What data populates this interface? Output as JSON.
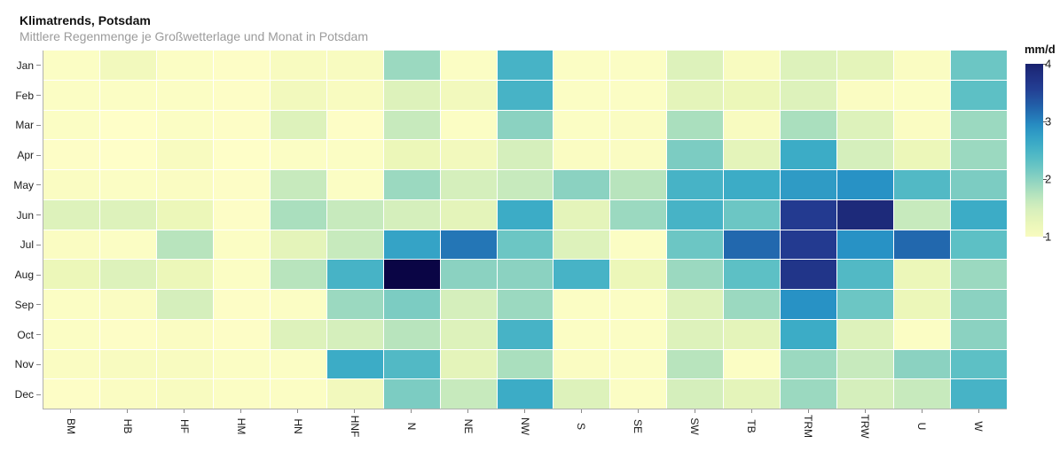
{
  "header": {
    "title": "Klimatrends, Potsdam",
    "subtitle": "Mittlere Regenmenge je Großwetterlage und Monat in Potsdam"
  },
  "legend": {
    "label": "mm/d",
    "ticks": [
      4,
      3,
      2,
      1
    ],
    "min": 1,
    "max": 4
  },
  "chart_data": {
    "type": "heatmap",
    "title": "Klimatrends, Potsdam",
    "subtitle": "Mittlere Regenmenge je Großwetterlage und Monat in Potsdam",
    "value_label": "mm/d",
    "x_categories": [
      "BM",
      "HB",
      "HF",
      "HM",
      "HN",
      "HNF",
      "N",
      "NE",
      "NW",
      "S",
      "SE",
      "SW",
      "TB",
      "TRM",
      "TRW",
      "U",
      "W"
    ],
    "y_categories": [
      "Jan",
      "Feb",
      "Mar",
      "Apr",
      "May",
      "Jun",
      "Jul",
      "Aug",
      "Sep",
      "Oct",
      "Nov",
      "Dec"
    ],
    "values": [
      [
        0.9,
        1.1,
        0.9,
        0.85,
        1.0,
        1.0,
        1.9,
        0.9,
        2.5,
        0.9,
        0.9,
        1.4,
        1.0,
        1.4,
        1.3,
        0.95,
        2.2
      ],
      [
        0.9,
        0.9,
        0.9,
        0.85,
        1.1,
        1.0,
        1.4,
        1.1,
        2.5,
        0.9,
        0.9,
        1.3,
        1.2,
        1.4,
        0.95,
        0.9,
        2.3
      ],
      [
        0.9,
        0.8,
        0.9,
        0.85,
        1.4,
        0.85,
        1.6,
        0.9,
        2.0,
        0.9,
        0.95,
        1.8,
        1.0,
        1.8,
        1.4,
        0.95,
        1.9
      ],
      [
        0.85,
        0.8,
        1.0,
        0.8,
        0.9,
        0.9,
        1.2,
        1.1,
        1.5,
        0.95,
        0.95,
        2.1,
        1.3,
        2.6,
        1.5,
        1.2,
        1.9
      ],
      [
        0.95,
        0.9,
        0.95,
        0.85,
        1.6,
        0.9,
        1.9,
        1.5,
        1.6,
        2.0,
        1.7,
        2.5,
        2.6,
        2.8,
        2.9,
        2.4,
        2.1
      ],
      [
        1.4,
        1.4,
        1.2,
        0.85,
        1.8,
        1.6,
        1.5,
        1.3,
        2.6,
        1.3,
        1.9,
        2.5,
        2.2,
        3.6,
        3.9,
        1.6,
        2.6
      ],
      [
        0.95,
        0.9,
        1.7,
        0.9,
        1.3,
        1.6,
        2.7,
        3.1,
        2.2,
        1.4,
        0.9,
        2.2,
        3.2,
        3.6,
        2.9,
        3.2,
        2.3
      ],
      [
        1.2,
        1.4,
        1.2,
        0.9,
        1.7,
        2.5,
        4.3,
        2.0,
        2.0,
        2.5,
        1.2,
        1.9,
        2.3,
        3.7,
        2.4,
        1.2,
        1.9
      ],
      [
        0.9,
        0.95,
        1.5,
        0.85,
        0.9,
        1.9,
        2.1,
        1.5,
        1.9,
        0.9,
        0.9,
        1.4,
        1.9,
        2.9,
        2.2,
        1.2,
        2.0
      ],
      [
        0.9,
        0.85,
        0.95,
        0.85,
        1.4,
        1.5,
        1.7,
        1.4,
        2.5,
        0.9,
        0.9,
        1.4,
        1.3,
        2.6,
        1.4,
        0.9,
        2.0
      ],
      [
        0.95,
        1.0,
        1.0,
        0.9,
        0.9,
        2.6,
        2.4,
        1.3,
        1.8,
        0.95,
        0.9,
        1.7,
        0.9,
        1.9,
        1.6,
        2.0,
        2.3
      ],
      [
        0.85,
        0.95,
        1.0,
        0.9,
        0.9,
        1.1,
        2.1,
        1.6,
        2.6,
        1.4,
        0.9,
        1.5,
        1.3,
        1.9,
        1.5,
        1.6,
        2.5
      ]
    ],
    "color_scale": {
      "palette": "YlGnBu",
      "legend_min": 1,
      "legend_max": 4,
      "stops": [
        [
          0.8,
          "#fefec8"
        ],
        [
          1.0,
          "#f8fbc0"
        ],
        [
          1.2,
          "#ecf7b9"
        ],
        [
          1.5,
          "#d5efbc"
        ],
        [
          1.8,
          "#aadfbe"
        ],
        [
          2.0,
          "#8bd2c1"
        ],
        [
          2.3,
          "#5dc0c5"
        ],
        [
          2.6,
          "#3cacc6"
        ],
        [
          2.9,
          "#2892c5"
        ],
        [
          3.2,
          "#2268ae"
        ],
        [
          3.6,
          "#233a90"
        ],
        [
          3.9,
          "#1d2a7a"
        ],
        [
          4.3,
          "#0a0545"
        ]
      ]
    },
    "layout": {
      "grid": false,
      "legend_position": "right",
      "x_tick_rotation": 90
    }
  }
}
